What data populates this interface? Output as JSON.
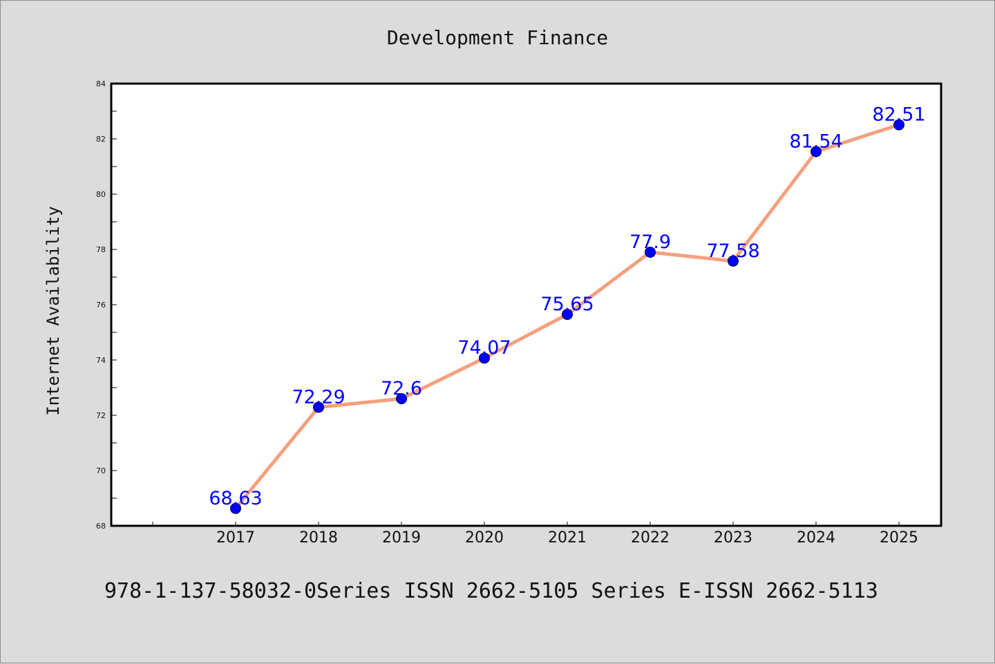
{
  "chart_data": {
    "type": "line",
    "title": "Development Finance",
    "xlabel": "",
    "ylabel": "Internet Availability",
    "categories": [
      "2017",
      "2018",
      "2019",
      "2020",
      "2021",
      "2022",
      "2023",
      "2024",
      "2025"
    ],
    "series": [
      {
        "values": [
          68.63,
          72.29,
          72.6,
          74.07,
          75.65,
          77.9,
          77.58,
          81.54,
          82.51
        ],
        "data_labels": [
          "68.63",
          "72.29",
          "72.6",
          "74.07",
          "75.65",
          "77.9",
          "77.58",
          "81.54",
          "82.51"
        ]
      }
    ],
    "ylim": [
      68,
      84
    ],
    "yticks": [
      "68",
      "70",
      "72",
      "74",
      "76",
      "78",
      "80",
      "82",
      "84"
    ],
    "grid": false,
    "legend": "none",
    "colors": {
      "line": "#f4a07e",
      "marker": "#0000ff",
      "data_label": "#0000ff",
      "background": "#dcdcdc",
      "plot_background": "#ffffff"
    }
  },
  "footer": "978-1-137-58032-0Series ISSN 2662-5105 Series E-ISSN 2662-5113"
}
